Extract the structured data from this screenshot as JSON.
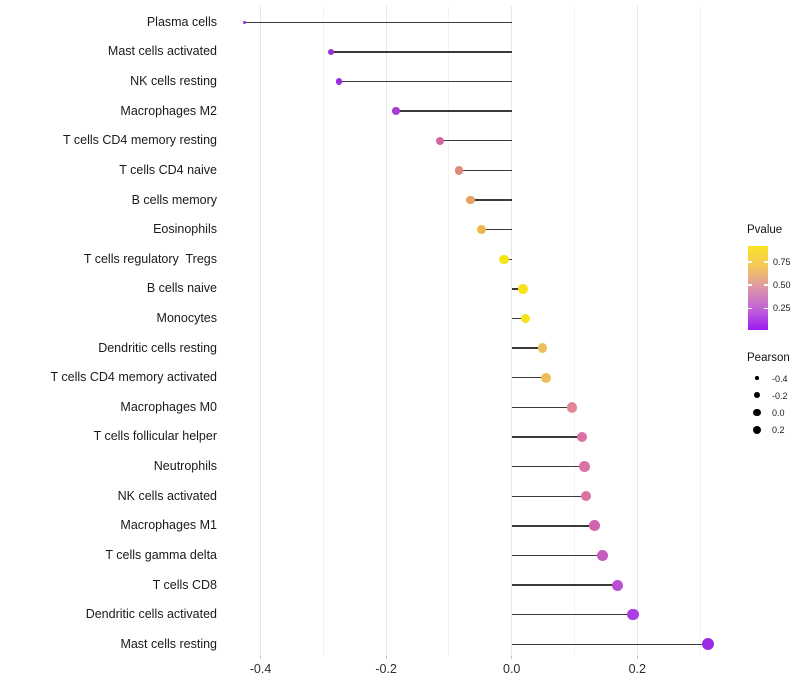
{
  "chart_data": {
    "type": "scatter",
    "variant": "lollipop",
    "title": "",
    "xlabel": "",
    "ylabel": "",
    "xlim": [
      -0.46,
      0.35
    ],
    "x_tick_values": [
      -0.4,
      -0.2,
      0.0,
      0.2
    ],
    "x_tick_labels": [
      "-0.4",
      "-0.2",
      "0.0",
      "0.2"
    ],
    "grid_minor_values": [
      -0.3,
      -0.1,
      0.1,
      0.3
    ],
    "grid": "vertical-only",
    "categories": [
      "Plasma cells",
      "Mast cells activated",
      "NK cells resting",
      "Macrophages M2",
      "T cells CD4 memory resting",
      "T cells CD4 naive",
      "B cells memory",
      "Eosinophils",
      "T cells regulatory  Tregs",
      "B cells naive",
      "Monocytes",
      "Dendritic cells resting",
      "T cells CD4 memory activated",
      "Macrophages M0",
      "T cells follicular helper",
      "Neutrophils",
      "NK cells activated",
      "Macrophages M1",
      "T cells gamma delta",
      "T cells CD8",
      "Dendritic cells activated",
      "Mast cells resting"
    ],
    "series": [
      {
        "name": "Pearson correlation",
        "values": [
          -0.425,
          -0.287,
          -0.275,
          -0.184,
          -0.114,
          -0.084,
          -0.065,
          -0.048,
          -0.012,
          0.018,
          0.022,
          0.049,
          0.055,
          0.096,
          0.112,
          0.116,
          0.118,
          0.132,
          0.145,
          0.168,
          0.193,
          0.313
        ],
        "point_colors": [
          "#8E35D6",
          "#9933D4",
          "#9A2CE0",
          "#A93CD6",
          "#CF67A0",
          "#E0897E",
          "#E8A163",
          "#EFB74D",
          "#F5E414",
          "#F5E41C",
          "#F4E31D",
          "#ECC05E",
          "#ECBE58",
          "#E28799",
          "#DA71A5",
          "#DA73A4",
          "#D973A3",
          "#D264B1",
          "#C75BC0",
          "#BA4ED2",
          "#AA3EE2",
          "#9B2BE8"
        ]
      }
    ],
    "stem_color": "#3a3a3a",
    "legend_position": "right"
  },
  "legends": {
    "pvalue": {
      "title": "Pvalue",
      "tick_labels": [
        "0.75",
        "0.50",
        "0.25"
      ],
      "tick_fractions_from_top": [
        0.187,
        0.464,
        0.742
      ],
      "gradient_top_to_bottom": [
        "#F9E525",
        "#F2C55C",
        "#DC96A8",
        "#C162D8",
        "#9E1BF2"
      ]
    },
    "pearson": {
      "title": "Pearson",
      "item_labels": [
        "-0.4",
        "-0.2",
        "0.0",
        "0.2"
      ],
      "item_values": [
        -0.4,
        -0.2,
        0.0,
        0.2
      ],
      "dot_color": "#000000"
    }
  }
}
